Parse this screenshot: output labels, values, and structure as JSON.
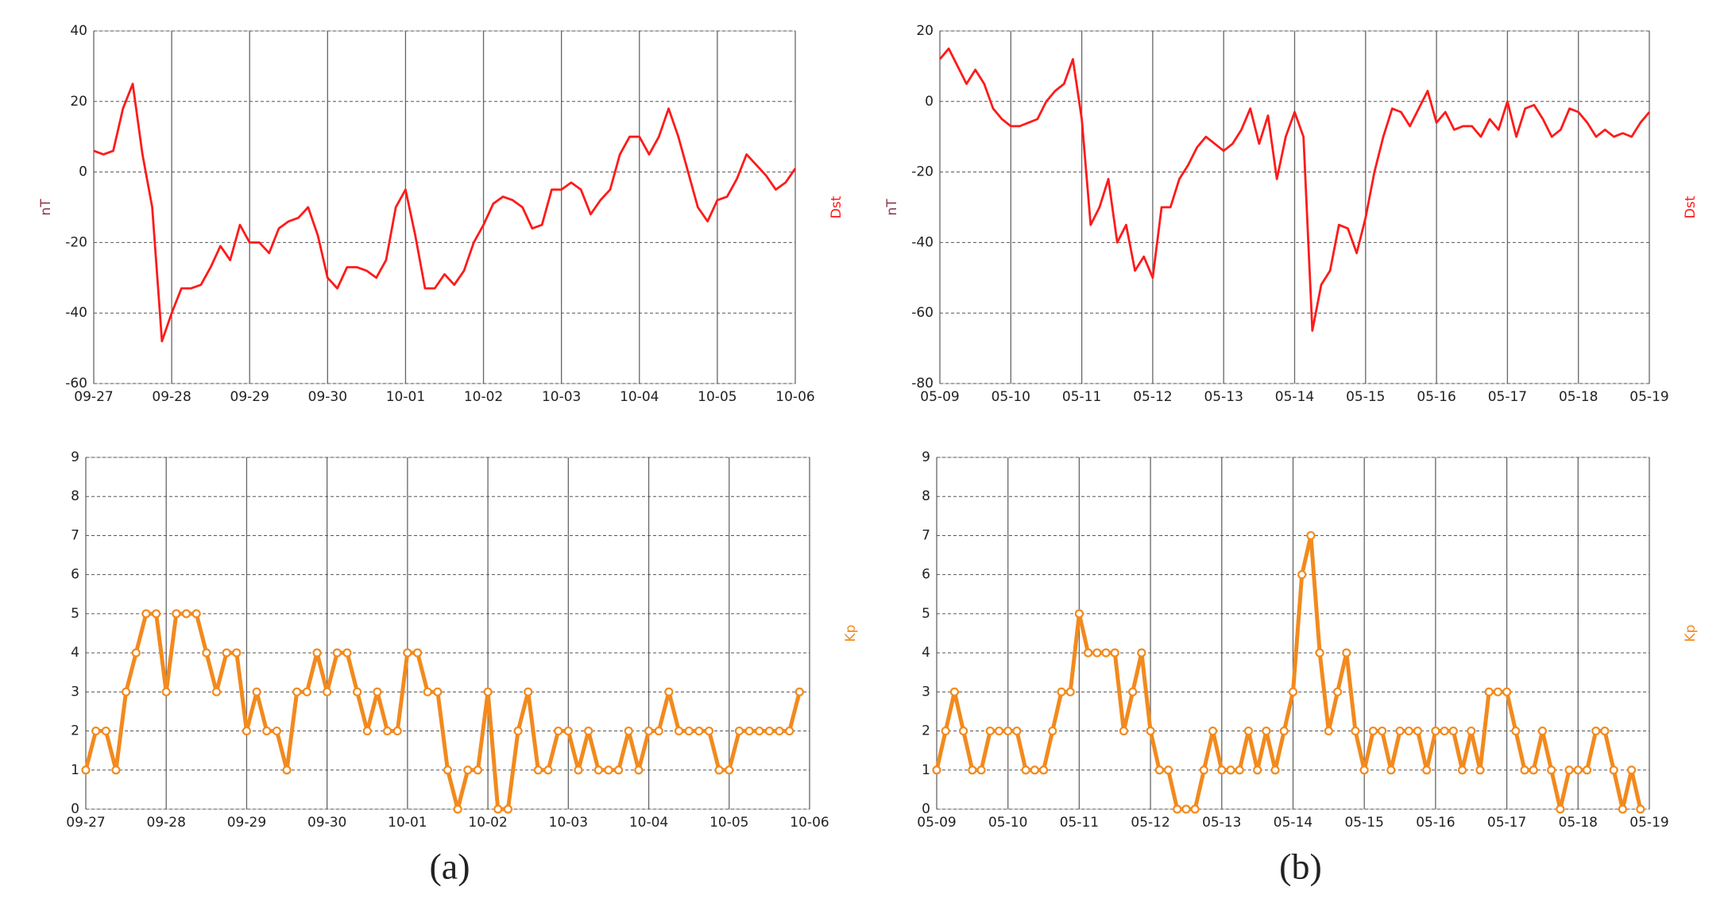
{
  "chart_data": [
    {
      "type": "line",
      "ylabel": "nT",
      "grid": true,
      "markers": false,
      "xlim": [
        0,
        9
      ],
      "xticks": [
        {
          "value": 0,
          "label": "09-27"
        },
        {
          "value": 1,
          "label": "09-28"
        },
        {
          "value": 2,
          "label": "09-29"
        },
        {
          "value": 3,
          "label": "09-30"
        },
        {
          "value": 4,
          "label": "10-01"
        },
        {
          "value": 5,
          "label": "10-02"
        },
        {
          "value": 6,
          "label": "10-03"
        },
        {
          "value": 7,
          "label": "10-04"
        },
        {
          "value": 8,
          "label": "10-05"
        },
        {
          "value": 9,
          "label": "10-06"
        }
      ],
      "ylim": [
        -60,
        40
      ],
      "yticks": [
        -60,
        -40,
        -20,
        0,
        20,
        40
      ],
      "series": [
        {
          "name": "Dst",
          "color": "#ff1a1a",
          "x": [
            0,
            0.125,
            0.25,
            0.375,
            0.5,
            0.625,
            0.75,
            0.875,
            1,
            1.125,
            1.25,
            1.375,
            1.5,
            1.625,
            1.75,
            1.875,
            2,
            2.125,
            2.25,
            2.375,
            2.5,
            2.625,
            2.75,
            2.875,
            3,
            3.125,
            3.25,
            3.375,
            3.5,
            3.625,
            3.75,
            3.875,
            4,
            4.125,
            4.25,
            4.375,
            4.5,
            4.625,
            4.75,
            4.875,
            5,
            5.125,
            5.25,
            5.375,
            5.5,
            5.625,
            5.75,
            5.875,
            6,
            6.125,
            6.25,
            6.375,
            6.5,
            6.625,
            6.75,
            6.875,
            7,
            7.125,
            7.25,
            7.375,
            7.5,
            7.625,
            7.75,
            7.875,
            8,
            8.125,
            8.25,
            8.375,
            8.5,
            8.625,
            8.75,
            8.875,
            9
          ],
          "values": [
            6,
            5,
            6,
            18,
            25,
            5,
            -10,
            -48,
            -40,
            -33,
            -33,
            -32,
            -27,
            -21,
            -25,
            -15,
            -20,
            -20,
            -23,
            -16,
            -14,
            -13,
            -10,
            -18,
            -30,
            -33,
            -27,
            -27,
            -28,
            -30,
            -25,
            -10,
            -5,
            -18,
            -33,
            -33,
            -29,
            -32,
            -28,
            -20,
            -15,
            -9,
            -7,
            -8,
            -10,
            -16,
            -15,
            -5,
            -5,
            -3,
            -5,
            -12,
            -8,
            -5,
            5,
            10,
            10,
            5,
            10,
            18,
            10,
            0,
            -10,
            -14,
            -8,
            -7,
            -2,
            5,
            2,
            -1,
            -5,
            -3,
            1
          ]
        }
      ]
    },
    {
      "type": "line",
      "ylabel": "nT",
      "grid": true,
      "markers": false,
      "xlim": [
        0,
        10
      ],
      "xticks": [
        {
          "value": 0,
          "label": "05-09"
        },
        {
          "value": 1,
          "label": "05-10"
        },
        {
          "value": 2,
          "label": "05-11"
        },
        {
          "value": 3,
          "label": "05-12"
        },
        {
          "value": 4,
          "label": "05-13"
        },
        {
          "value": 5,
          "label": "05-14"
        },
        {
          "value": 6,
          "label": "05-15"
        },
        {
          "value": 7,
          "label": "05-16"
        },
        {
          "value": 8,
          "label": "05-17"
        },
        {
          "value": 9,
          "label": "05-18"
        },
        {
          "value": 10,
          "label": "05-19"
        }
      ],
      "ylim": [
        -80,
        20
      ],
      "yticks": [
        -80,
        -60,
        -40,
        -20,
        0,
        20
      ],
      "series": [
        {
          "name": "Dst",
          "color": "#ff1a1a",
          "x": [
            0,
            0.125,
            0.25,
            0.375,
            0.5,
            0.625,
            0.75,
            0.875,
            1,
            1.125,
            1.25,
            1.375,
            1.5,
            1.625,
            1.75,
            1.875,
            2,
            2.125,
            2.25,
            2.375,
            2.5,
            2.625,
            2.75,
            2.875,
            3,
            3.125,
            3.25,
            3.375,
            3.5,
            3.625,
            3.75,
            3.875,
            4,
            4.125,
            4.25,
            4.375,
            4.5,
            4.625,
            4.75,
            4.875,
            5,
            5.125,
            5.25,
            5.375,
            5.5,
            5.625,
            5.75,
            5.875,
            6,
            6.125,
            6.25,
            6.375,
            6.5,
            6.625,
            6.75,
            6.875,
            7,
            7.125,
            7.25,
            7.375,
            7.5,
            7.625,
            7.75,
            7.875,
            8,
            8.125,
            8.25,
            8.375,
            8.5,
            8.625,
            8.75,
            8.875,
            9,
            9.125,
            9.25,
            9.375,
            9.5,
            9.625,
            9.75,
            9.875,
            10
          ],
          "values": [
            12,
            15,
            10,
            5,
            9,
            5,
            -2,
            -5,
            -7,
            -7,
            -6,
            -5,
            0,
            3,
            5,
            12,
            -5,
            -35,
            -30,
            -22,
            -40,
            -35,
            -48,
            -44,
            -50,
            -30,
            -30,
            -22,
            -18,
            -13,
            -10,
            -12,
            -14,
            -12,
            -8,
            -2,
            -12,
            -4,
            -22,
            -10,
            -3,
            -10,
            -65,
            -52,
            -48,
            -35,
            -36,
            -43,
            -33,
            -20,
            -10,
            -2,
            -3,
            -7,
            -2,
            3,
            -6,
            -3,
            -8,
            -7,
            -7,
            -10,
            -5,
            -8,
            0,
            -10,
            -2,
            -1,
            -5,
            -10,
            -8,
            -2,
            -3,
            -6,
            -10,
            -8,
            -10,
            -9,
            -10,
            -6,
            -3
          ]
        }
      ]
    },
    {
      "type": "line",
      "grid": true,
      "markers": true,
      "xlim": [
        0,
        9
      ],
      "xticks": [
        {
          "value": 0,
          "label": "09-27"
        },
        {
          "value": 1,
          "label": "09-28"
        },
        {
          "value": 2,
          "label": "09-29"
        },
        {
          "value": 3,
          "label": "09-30"
        },
        {
          "value": 4,
          "label": "10-01"
        },
        {
          "value": 5,
          "label": "10-02"
        },
        {
          "value": 6,
          "label": "10-03"
        },
        {
          "value": 7,
          "label": "10-04"
        },
        {
          "value": 8,
          "label": "10-05"
        },
        {
          "value": 9,
          "label": "10-06"
        }
      ],
      "ylim": [
        0,
        9
      ],
      "yticks": [
        0,
        1,
        2,
        3,
        4,
        5,
        6,
        7,
        8,
        9
      ],
      "series": [
        {
          "name": "Kp",
          "color": "#f28a1e",
          "x": [
            0,
            0.125,
            0.25,
            0.375,
            0.5,
            0.625,
            0.75,
            0.875,
            1,
            1.125,
            1.25,
            1.375,
            1.5,
            1.625,
            1.75,
            1.875,
            2,
            2.125,
            2.25,
            2.375,
            2.5,
            2.625,
            2.75,
            2.875,
            3,
            3.125,
            3.25,
            3.375,
            3.5,
            3.625,
            3.75,
            3.875,
            4,
            4.125,
            4.25,
            4.375,
            4.5,
            4.625,
            4.75,
            4.875,
            5,
            5.125,
            5.25,
            5.375,
            5.5,
            5.625,
            5.75,
            5.875,
            6,
            6.125,
            6.25,
            6.375,
            6.5,
            6.625,
            6.75,
            6.875,
            7,
            7.125,
            7.25,
            7.375,
            7.5,
            7.625,
            7.75,
            7.875,
            8,
            8.125,
            8.25,
            8.375,
            8.5,
            8.625,
            8.75,
            8.875
          ],
          "values": [
            1,
            2,
            2,
            1,
            3,
            4,
            5,
            5,
            3,
            5,
            5,
            5,
            4,
            3,
            4,
            4,
            2,
            3,
            2,
            2,
            1,
            3,
            3,
            4,
            3,
            4,
            4,
            3,
            2,
            3,
            2,
            2,
            4,
            4,
            3,
            3,
            1,
            0,
            1,
            1,
            3,
            0,
            0,
            2,
            3,
            1,
            1,
            2,
            2,
            1,
            2,
            1,
            1,
            1,
            2,
            1,
            2,
            2,
            3,
            2,
            2,
            2,
            2,
            1,
            1,
            2,
            2,
            2,
            2,
            2,
            2,
            3
          ]
        }
      ]
    },
    {
      "type": "line",
      "grid": true,
      "markers": true,
      "xlim": [
        0,
        10
      ],
      "xticks": [
        {
          "value": 0,
          "label": "05-09"
        },
        {
          "value": 1,
          "label": "05-10"
        },
        {
          "value": 2,
          "label": "05-11"
        },
        {
          "value": 3,
          "label": "05-12"
        },
        {
          "value": 4,
          "label": "05-13"
        },
        {
          "value": 5,
          "label": "05-14"
        },
        {
          "value": 6,
          "label": "05-15"
        },
        {
          "value": 7,
          "label": "05-16"
        },
        {
          "value": 8,
          "label": "05-17"
        },
        {
          "value": 9,
          "label": "05-18"
        },
        {
          "value": 10,
          "label": "05-19"
        }
      ],
      "ylim": [
        0,
        9
      ],
      "yticks": [
        0,
        1,
        2,
        3,
        4,
        5,
        6,
        7,
        8,
        9
      ],
      "series": [
        {
          "name": "Kp",
          "color": "#f28a1e",
          "x": [
            0,
            0.125,
            0.25,
            0.375,
            0.5,
            0.625,
            0.75,
            0.875,
            1,
            1.125,
            1.25,
            1.375,
            1.5,
            1.625,
            1.75,
            1.875,
            2,
            2.125,
            2.25,
            2.375,
            2.5,
            2.625,
            2.75,
            2.875,
            3,
            3.125,
            3.25,
            3.375,
            3.5,
            3.625,
            3.75,
            3.875,
            4,
            4.125,
            4.25,
            4.375,
            4.5,
            4.625,
            4.75,
            4.875,
            5,
            5.125,
            5.25,
            5.375,
            5.5,
            5.625,
            5.75,
            5.875,
            6,
            6.125,
            6.25,
            6.375,
            6.5,
            6.625,
            6.75,
            6.875,
            7,
            7.125,
            7.25,
            7.375,
            7.5,
            7.625,
            7.75,
            7.875,
            8,
            8.125,
            8.25,
            8.375,
            8.5,
            8.625,
            8.75,
            8.875,
            9,
            9.125,
            9.25,
            9.375,
            9.5,
            9.625,
            9.75,
            9.875
          ],
          "values": [
            1,
            2,
            3,
            2,
            1,
            1,
            2,
            2,
            2,
            2,
            1,
            1,
            1,
            2,
            3,
            3,
            5,
            4,
            4,
            4,
            4,
            2,
            3,
            4,
            2,
            1,
            1,
            0,
            0,
            0,
            1,
            2,
            1,
            1,
            1,
            2,
            1,
            2,
            1,
            2,
            3,
            6,
            7,
            4,
            2,
            3,
            4,
            2,
            1,
            2,
            2,
            1,
            2,
            2,
            2,
            1,
            2,
            2,
            2,
            1,
            2,
            1,
            3,
            3,
            3,
            2,
            1,
            1,
            2,
            1,
            0,
            1,
            1,
            1,
            2,
            2,
            1,
            0,
            1,
            0
          ]
        }
      ]
    }
  ],
  "captions": [
    "(a)",
    "(b)"
  ]
}
